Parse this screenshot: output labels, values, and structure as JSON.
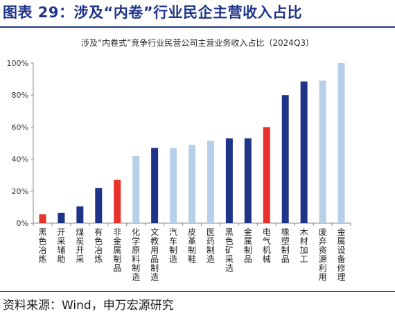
{
  "figure_title": "图表 29：涉及“内卷”行业民企主营收入占比",
  "source": "资料来源：Wind，申万宏源研究",
  "colors": {
    "dark_blue": "#1f3488",
    "light_blue": "#b8cfe8",
    "red": "#e8312b",
    "axis": "#888888"
  },
  "chart_data": {
    "type": "bar",
    "title": "涉及“内卷式”竞争行业民营公司主营业务收入占比（2024Q3）",
    "xlabel": "",
    "ylabel": "",
    "ylim": [
      0,
      1
    ],
    "y_ticks": [
      "0%",
      "20%",
      "40%",
      "60%",
      "80%",
      "100%"
    ],
    "y_tick_values": [
      0,
      0.2,
      0.4,
      0.6,
      0.8,
      1.0
    ],
    "grid": false,
    "legend": "none",
    "categories": [
      "黑色冶炼",
      "开采辅助",
      "煤炭开采",
      "有色冶炼",
      "非金属制品",
      "化学原料制造",
      "文教用品制造",
      "汽车制造",
      "皮革制鞋",
      "医药制造",
      "黑色矿采选",
      "金属制品",
      "电气机械",
      "橡塑制品",
      "木材加工",
      "废弃资源利用",
      "金属设备修理"
    ],
    "values": [
      0.055,
      0.065,
      0.105,
      0.22,
      0.27,
      0.42,
      0.47,
      0.47,
      0.49,
      0.515,
      0.53,
      0.53,
      0.6,
      0.8,
      0.885,
      0.89,
      1.0
    ],
    "bar_colors": [
      "red",
      "dark_blue",
      "dark_blue",
      "dark_blue",
      "red",
      "light_blue",
      "dark_blue",
      "light_blue",
      "light_blue",
      "light_blue",
      "dark_blue",
      "dark_blue",
      "red",
      "dark_blue",
      "dark_blue",
      "light_blue",
      "light_blue"
    ]
  }
}
